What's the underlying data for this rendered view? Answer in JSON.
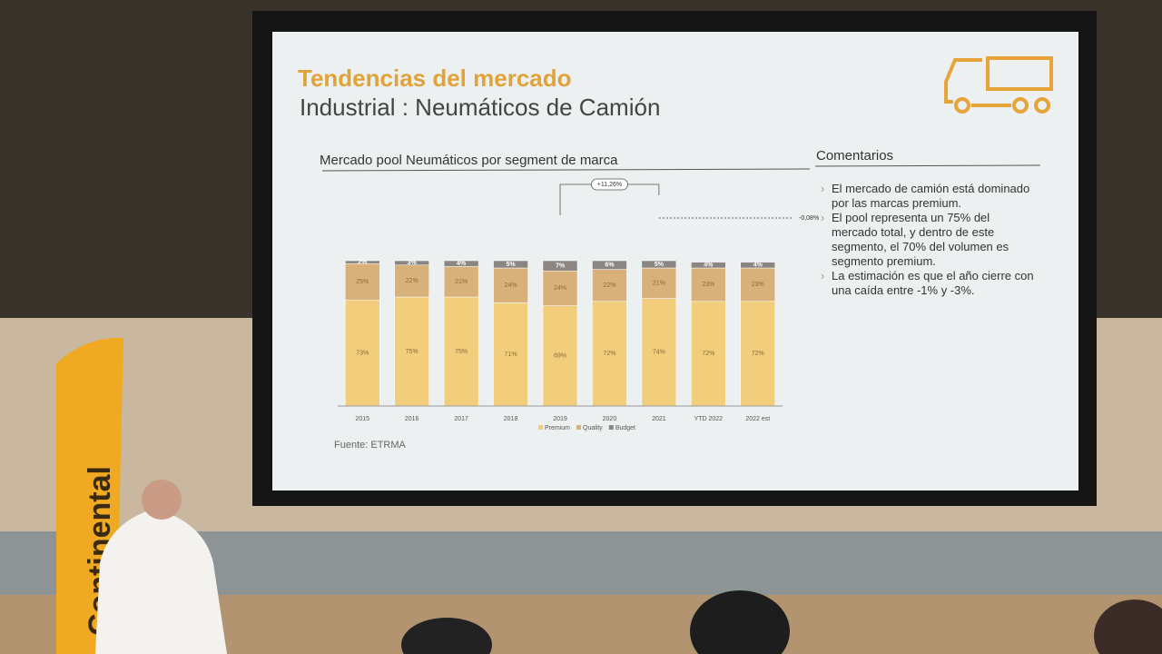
{
  "slide": {
    "title": "Tendencias del mercado",
    "subtitle": "Industrial : Neumáticos de Camión",
    "comments_heading": "Comentarios",
    "comments": [
      "El mercado de camión está dominado por las marcas premium.",
      "El pool representa un 75% del mercado total, y dentro de este segmento, el 70% del volumen es segmento premium.",
      "La estimación es que el año cierre con una caída entre -1% y -3%."
    ],
    "source": "Fuente: ETRMA"
  },
  "banner": "Continental",
  "chart_data": {
    "type": "stacked_bar",
    "title": "Mercado pool Neumáticos por segment de marca",
    "categories": [
      "2015",
      "2016",
      "2017",
      "2018",
      "2019",
      "2020",
      "2021",
      "YTD 2022",
      "2022 est"
    ],
    "series": [
      {
        "name": "Premium",
        "color": "#f2cd7c",
        "values": [
          73,
          75,
          75,
          71,
          69,
          72,
          74,
          72,
          72
        ],
        "value_labels": [
          "73%",
          "75%",
          "75%",
          "71%",
          "69%",
          "72%",
          "74%",
          "72%",
          "72%"
        ]
      },
      {
        "name": "Quality",
        "color": "#d8b07a",
        "values": [
          25,
          22,
          21,
          24,
          24,
          22,
          21,
          23,
          23
        ],
        "value_labels": [
          "25%",
          "22%",
          "21%",
          "24%",
          "24%",
          "22%",
          "21%",
          "23%",
          "23%"
        ]
      },
      {
        "name": "Budget",
        "color": "#8c8682",
        "values": [
          2,
          3,
          4,
          5,
          7,
          6,
          5,
          4,
          4
        ],
        "value_labels": [
          "2%",
          "3%",
          "4%",
          "5%",
          "7%",
          "6%",
          "5%",
          "4%",
          "4%"
        ]
      }
    ],
    "annotations": [
      "+11,26%",
      "-0,08%"
    ]
  }
}
